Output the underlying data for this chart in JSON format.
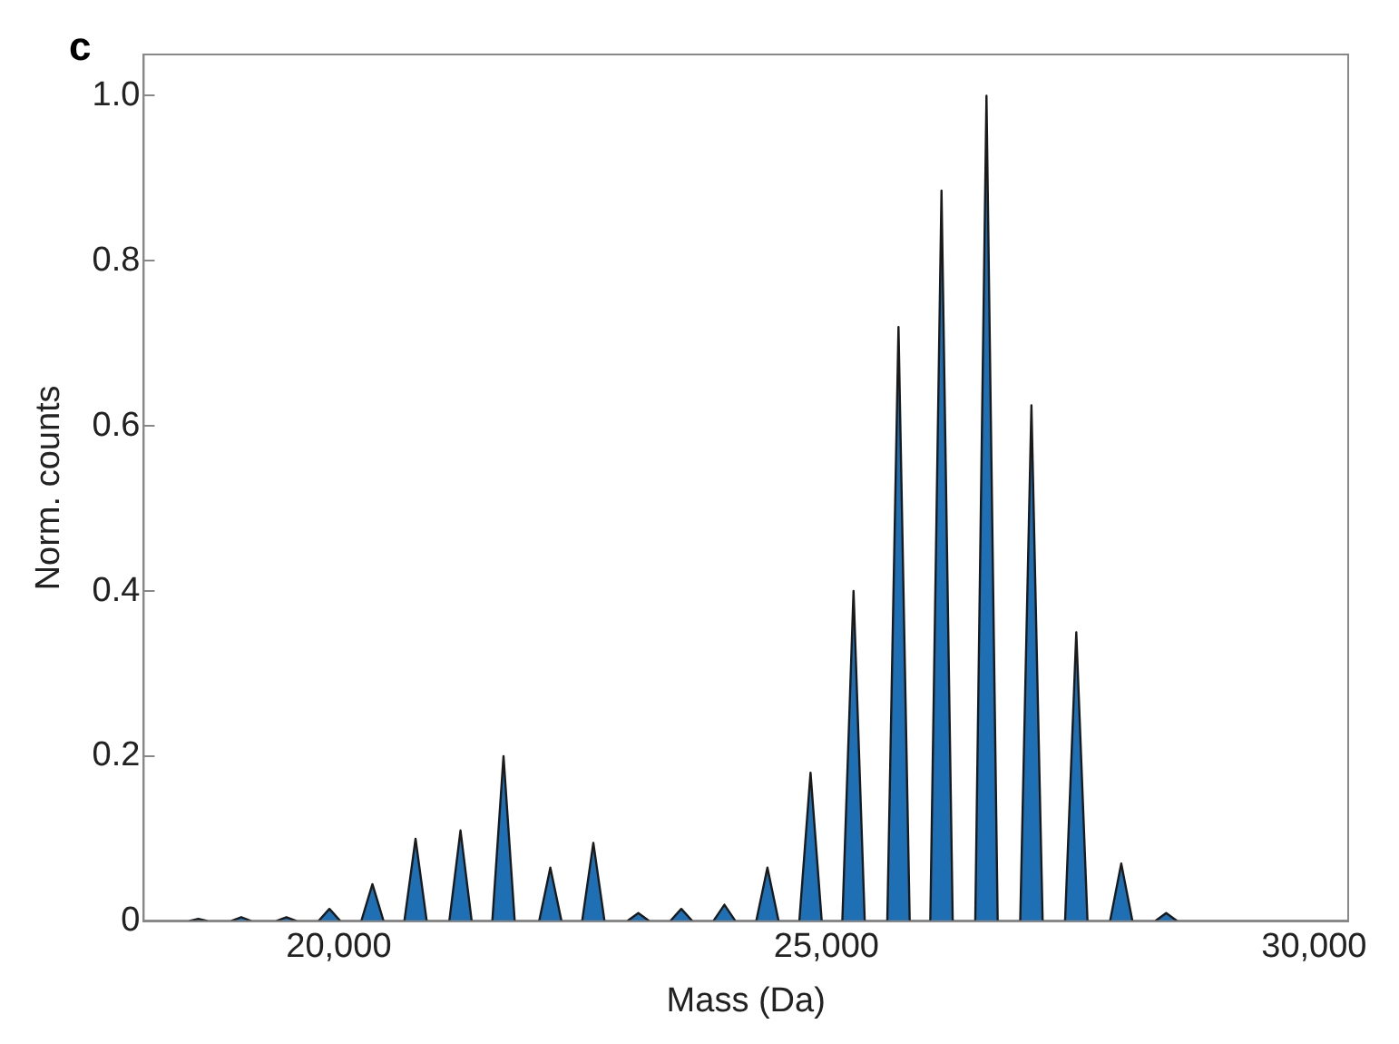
{
  "chart_data": {
    "type": "area",
    "title": "c",
    "xlabel": "Mass (Da)",
    "ylabel": "Norm. counts",
    "x": [
      18000,
      18450,
      18560,
      18670,
      18890,
      19000,
      19110,
      19350,
      19463,
      19576,
      19790,
      19904,
      20018,
      20230,
      20345,
      20460,
      20672,
      20787,
      20902,
      21133,
      21248,
      21363,
      21574,
      21689,
      21804,
      22054,
      22169,
      22284,
      22495,
      22610,
      22725,
      22956,
      23071,
      23186,
      23397,
      23512,
      23627,
      23839,
      23954,
      24069,
      24280,
      24395,
      24510,
      24722,
      24837,
      24952,
      25163,
      25278,
      25393,
      25624,
      25739,
      25854,
      26065,
      26180,
      26295,
      26526,
      26641,
      26756,
      26987,
      27102,
      27217,
      27447,
      27562,
      27677,
      27908,
      28023,
      28138,
      28369,
      28484,
      28599,
      30350
    ],
    "series": [
      {
        "color": "#1f6fb4",
        "values": [
          0,
          0,
          0.003,
          0,
          0,
          0.005,
          0,
          0,
          0.005,
          0,
          0,
          0.015,
          0,
          0,
          0.045,
          0,
          0,
          0.1,
          0,
          0,
          0.11,
          0,
          0,
          0.2,
          0,
          0,
          0.065,
          0,
          0,
          0.095,
          0,
          0,
          0.01,
          0,
          0,
          0.015,
          0,
          0,
          0.02,
          0,
          0,
          0.065,
          0,
          0,
          0.18,
          0,
          0,
          0.4,
          0,
          0,
          0.72,
          0,
          0,
          0.885,
          0,
          0,
          1.0,
          0,
          0,
          0.625,
          0,
          0,
          0.35,
          0,
          0,
          0.07,
          0,
          0,
          0.01,
          0,
          0
        ]
      }
    ],
    "xlim": [
      18000,
      30350
    ],
    "xticks": [
      {
        "value": 20000,
        "label": "20,000"
      },
      {
        "value": 25000,
        "label": "25,000"
      },
      {
        "value": 30000,
        "label": "30,000"
      }
    ],
    "ylim": [
      0,
      1.05
    ],
    "yticks": [
      0,
      0.2,
      0.4,
      0.6,
      0.8,
      {
        "value": 1,
        "label": "1.0"
      }
    ],
    "grid": false,
    "legend": false,
    "marker": "none"
  }
}
